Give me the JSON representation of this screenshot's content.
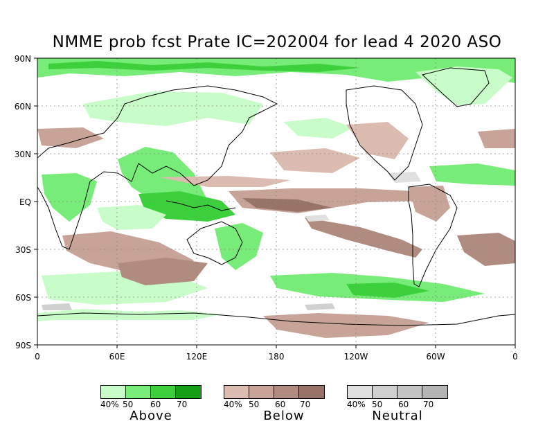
{
  "title": "NMME prob fcst Prate IC=202004 for lead 4 2020 ASO",
  "axes": {
    "lat_labels": [
      "90N",
      "60N",
      "30N",
      "EQ",
      "30S",
      "60S",
      "90S"
    ],
    "lon_labels": [
      "0",
      "60E",
      "120E",
      "180",
      "120W",
      "60W",
      "0"
    ]
  },
  "legend": [
    {
      "name": "Above",
      "ticks": [
        "40%",
        "50",
        "60",
        "70"
      ],
      "colors": [
        "#c8fcc8",
        "#78ec78",
        "#3cd03c",
        "#14a014"
      ]
    },
    {
      "name": "Below",
      "ticks": [
        "40%",
        "50",
        "60",
        "70"
      ],
      "colors": [
        "#dcbcb0",
        "#c8a498",
        "#b08c80",
        "#987468"
      ]
    },
    {
      "name": "Neutral",
      "ticks": [
        "40%",
        "50",
        "60",
        "70"
      ],
      "colors": [
        "#e0e0e0",
        "#d0d0d0",
        "#c4c4c4",
        "#b4b4b4"
      ]
    }
  ],
  "colors": {
    "above_40": "#c8fcc8",
    "above_50": "#78ec78",
    "above_60": "#3cd03c",
    "above_70": "#14a014",
    "below_40": "#dcbcb0",
    "below_50": "#c8a498",
    "below_60": "#b08c80",
    "below_70": "#987468",
    "neutral_40": "#e0e0e0"
  }
}
